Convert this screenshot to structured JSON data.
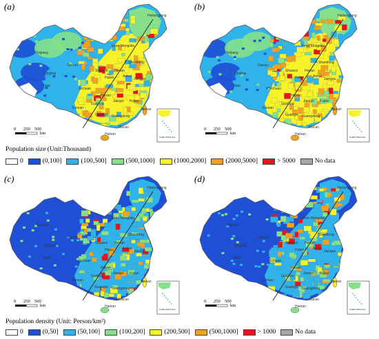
{
  "panels": [
    {
      "label": "(a)",
      "kind": "size"
    },
    {
      "label": "(b)",
      "kind": "size"
    },
    {
      "label": "(c)",
      "kind": "density"
    },
    {
      "label": "(d)",
      "kind": "density"
    }
  ],
  "scalebar": {
    "labels": [
      "0",
      "250",
      "500"
    ],
    "unit": "km"
  },
  "inset_title": "South China Sea",
  "province_labels": [
    "Xinjiang",
    "Qinghai",
    "Tibet",
    "Gansu",
    "Inner Mongolia",
    "Heilongjiang",
    "Sichuan",
    "Yunnan",
    "Guizhou",
    "Hubei",
    "Hunan",
    "Henan",
    "Shaanxi",
    "Anhui",
    "Jiangxi",
    "Fujian",
    "Guangxi",
    "Guangdong",
    "Taiwan",
    "Macao",
    "Hainan",
    "Shandong",
    "Jiangsu"
  ],
  "legend_size": {
    "title": "Population size (Unit:Thousand)",
    "items": [
      {
        "label": "0",
        "color": "#ffffff"
      },
      {
        "label": "(0,100]",
        "color": "#1f4fd6"
      },
      {
        "label": "(100,500]",
        "color": "#2fb3ea"
      },
      {
        "label": "(500,1000]",
        "color": "#86e08a"
      },
      {
        "label": "(1000,2000]",
        "color": "#f7f22a"
      },
      {
        "label": "(2000,5000]",
        "color": "#f3a21c"
      },
      {
        "label": "> 5000",
        "color": "#e8141b"
      },
      {
        "label": "No data",
        "color": "#a6a6a6"
      }
    ]
  },
  "legend_density": {
    "title": "Population density (Unit: Person/km²)",
    "items": [
      {
        "label": "0",
        "color": "#ffffff"
      },
      {
        "label": "(0,50]",
        "color": "#1f4fd6"
      },
      {
        "label": "(50,100]",
        "color": "#2fb3ea"
      },
      {
        "label": "(100,200]",
        "color": "#86e08a"
      },
      {
        "label": "(200,500]",
        "color": "#f7f22a"
      },
      {
        "label": "(500,1000]",
        "color": "#f3a21c"
      },
      {
        "label": "> 1000",
        "color": "#e8141b"
      },
      {
        "label": "No data",
        "color": "#a6a6a6"
      }
    ]
  }
}
